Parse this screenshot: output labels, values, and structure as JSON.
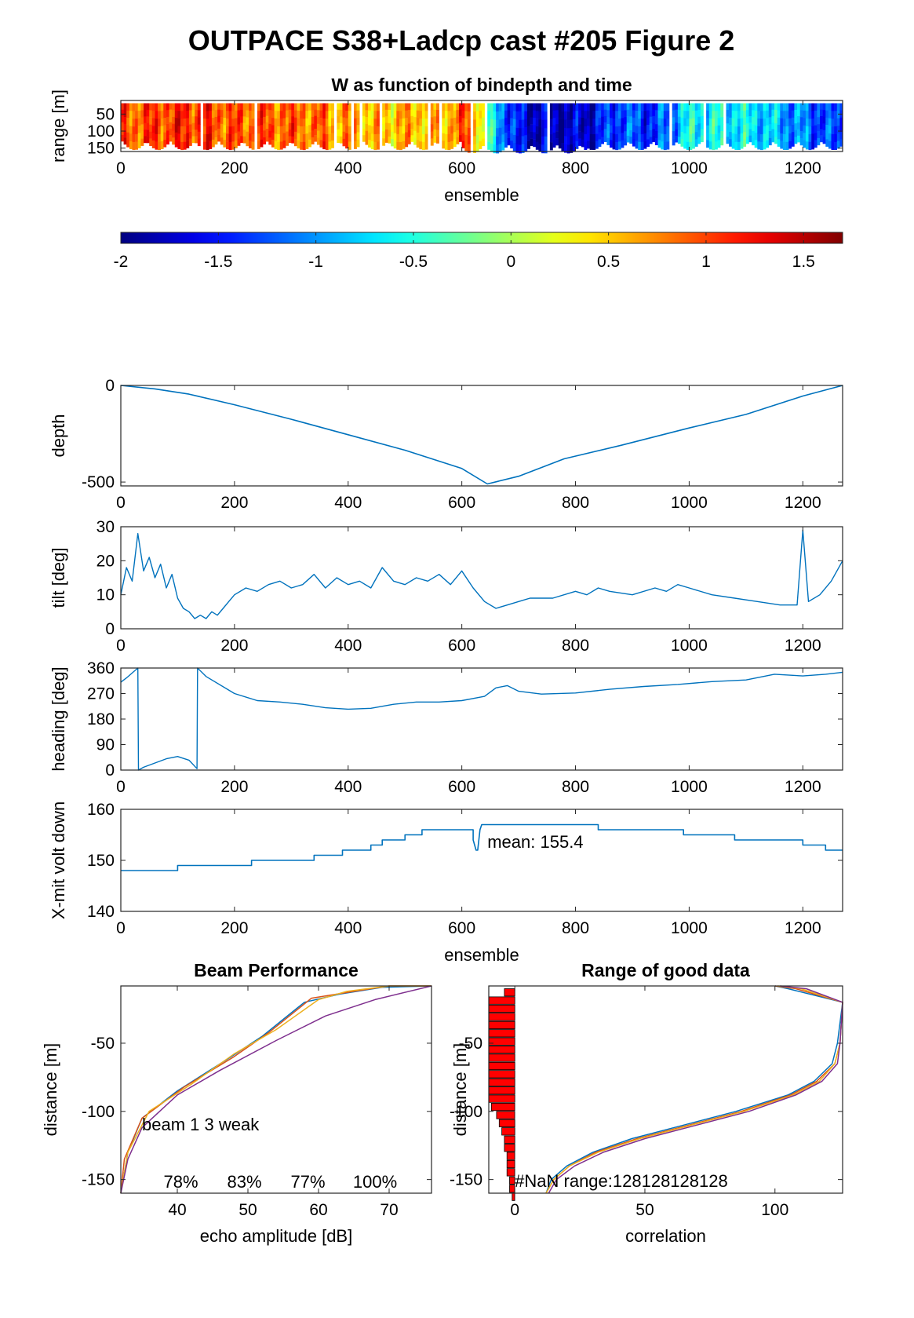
{
  "figure": {
    "title": "OUTPACE S38+Ladcp cast #205 Figure 2",
    "colors": {
      "line": "#0072BD",
      "bar_fill": "#ff0000",
      "axis": "#262626"
    }
  },
  "chart_data": [
    {
      "id": "w_image",
      "type": "heatmap",
      "title": "W as function of bindepth and time",
      "xlabel": "ensemble",
      "ylabel": "range [m]",
      "xlim": [
        0,
        1270
      ],
      "ylim": [
        10,
        160
      ],
      "y_reversed": true,
      "xticks": [
        0,
        200,
        400,
        600,
        800,
        1000,
        1200
      ],
      "yticks": [
        50,
        100,
        150
      ],
      "colormap": "jet",
      "clim": [
        -2,
        1.7
      ],
      "w_profile": {
        "ensemble": [
          0,
          60,
          120,
          200,
          280,
          360,
          440,
          520,
          580,
          620,
          650,
          700,
          760,
          820,
          880,
          940,
          1000,
          1060,
          1120,
          1180,
          1240,
          1270
        ],
        "w": [
          0.9,
          1.0,
          1.1,
          0.9,
          0.9,
          0.8,
          0.5,
          0.6,
          0.7,
          1.0,
          -0.6,
          -1.6,
          -1.8,
          -1.7,
          -1.2,
          -1.4,
          -0.6,
          -0.6,
          -0.7,
          -1.0,
          -1.3,
          -1.4
        ]
      }
    },
    {
      "id": "colorbar",
      "type": "colorbar",
      "colormap": "jet",
      "clim": [
        -2,
        1.7
      ],
      "ticks": [
        "-2",
        "-1.5",
        "-1",
        "-0.5",
        "0",
        "0.5",
        "1",
        "1.5"
      ]
    },
    {
      "id": "depth",
      "type": "line",
      "xlabel": "",
      "ylabel": "depth",
      "xlim": [
        0,
        1270
      ],
      "ylim": [
        -520,
        0
      ],
      "xticks": [
        0,
        200,
        400,
        600,
        800,
        1000,
        1200
      ],
      "yticks": [
        0,
        -500
      ],
      "x": [
        0,
        60,
        120,
        200,
        300,
        400,
        500,
        600,
        645,
        700,
        780,
        880,
        1000,
        1100,
        1200,
        1270
      ],
      "y": [
        0,
        -18,
        -45,
        -100,
        -175,
        -255,
        -335,
        -430,
        -510,
        -470,
        -380,
        -310,
        -220,
        -150,
        -55,
        0
      ]
    },
    {
      "id": "tilt",
      "type": "line",
      "xlabel": "",
      "ylabel": "tilt [deg]",
      "xlim": [
        0,
        1270
      ],
      "ylim": [
        0,
        30
      ],
      "xticks": [
        0,
        200,
        400,
        600,
        800,
        1000,
        1200
      ],
      "yticks": [
        0,
        10,
        20,
        30
      ],
      "x": [
        0,
        10,
        20,
        30,
        40,
        50,
        60,
        70,
        80,
        90,
        100,
        110,
        120,
        130,
        140,
        150,
        160,
        170,
        180,
        190,
        200,
        220,
        240,
        260,
        280,
        300,
        320,
        340,
        360,
        380,
        400,
        420,
        440,
        460,
        480,
        500,
        520,
        540,
        560,
        580,
        600,
        620,
        640,
        660,
        680,
        700,
        720,
        760,
        800,
        820,
        840,
        860,
        900,
        940,
        960,
        980,
        1000,
        1040,
        1080,
        1120,
        1160,
        1190,
        1200,
        1210,
        1230,
        1250,
        1270
      ],
      "y": [
        10,
        18,
        14,
        28,
        17,
        21,
        15,
        19,
        12,
        16,
        9,
        6,
        5,
        3,
        4,
        3,
        5,
        4,
        6,
        8,
        10,
        12,
        11,
        13,
        14,
        12,
        13,
        16,
        12,
        15,
        13,
        14,
        12,
        18,
        14,
        13,
        15,
        14,
        16,
        13,
        17,
        12,
        8,
        6,
        7,
        8,
        9,
        9,
        11,
        10,
        12,
        11,
        10,
        12,
        11,
        13,
        12,
        10,
        9,
        8,
        7,
        7,
        29,
        8,
        10,
        14,
        20
      ]
    },
    {
      "id": "heading",
      "type": "line",
      "xlabel": "",
      "ylabel": "heading [deg]",
      "xlim": [
        0,
        1270
      ],
      "ylim": [
        0,
        360
      ],
      "xticks": [
        0,
        200,
        400,
        600,
        800,
        1000,
        1200
      ],
      "yticks": [
        0,
        90,
        180,
        270,
        360
      ],
      "x": [
        0,
        10,
        30,
        31,
        40,
        60,
        80,
        100,
        120,
        134,
        135,
        150,
        200,
        240,
        280,
        320,
        360,
        400,
        440,
        480,
        520,
        560,
        600,
        640,
        660,
        680,
        700,
        740,
        800,
        860,
        920,
        980,
        1040,
        1100,
        1150,
        1200,
        1240,
        1270
      ],
      "y": [
        310,
        325,
        360,
        0,
        10,
        25,
        40,
        48,
        35,
        5,
        360,
        330,
        270,
        245,
        240,
        232,
        220,
        215,
        218,
        232,
        240,
        240,
        245,
        260,
        290,
        298,
        278,
        268,
        272,
        285,
        295,
        302,
        312,
        318,
        338,
        332,
        338,
        345
      ]
    },
    {
      "id": "xmit_volt",
      "type": "line",
      "xlabel": "ensemble",
      "ylabel": "X-mit volt down",
      "xlim": [
        0,
        1270
      ],
      "ylim": [
        140,
        160
      ],
      "xticks": [
        0,
        200,
        400,
        600,
        800,
        1000,
        1200
      ],
      "yticks": [
        140,
        150,
        160
      ],
      "annotation": "mean: 155.4",
      "x": [
        0,
        100,
        100,
        230,
        230,
        340,
        340,
        390,
        390,
        440,
        440,
        460,
        460,
        500,
        500,
        530,
        530,
        620,
        620,
        625,
        628,
        632,
        635,
        640,
        640,
        840,
        840,
        990,
        990,
        1080,
        1080,
        1200,
        1200,
        1240,
        1240,
        1270
      ],
      "y": [
        148,
        148,
        149,
        149,
        150,
        150,
        151,
        151,
        152,
        152,
        153,
        153,
        154,
        154,
        155,
        155,
        156,
        156,
        154,
        152,
        152,
        156,
        157,
        157,
        157,
        157,
        156,
        156,
        155,
        155,
        154,
        154,
        153,
        153,
        152,
        152
      ]
    },
    {
      "id": "beam_performance",
      "type": "line",
      "title": "Beam Performance",
      "xlabel": "echo amplitude [dB]",
      "ylabel": "distance [m]",
      "xlim": [
        32,
        76
      ],
      "ylim": [
        -160,
        -8
      ],
      "xticks": [
        40,
        50,
        60,
        70
      ],
      "yticks": [
        -50,
        -100,
        -150
      ],
      "annotation": "beam 1  3 weak",
      "beam_pct": [
        "78%",
        "83%",
        "77%",
        "100%"
      ],
      "series": [
        {
          "color": "#0072BD",
          "x": [
            32,
            33,
            35,
            40,
            47,
            52,
            58,
            63,
            69,
            76
          ],
          "y": [
            -160,
            -130,
            -105,
            -85,
            -62,
            -45,
            -20,
            -14,
            -9,
            -8
          ]
        },
        {
          "color": "#D95319",
          "x": [
            32,
            32.5,
            35,
            41,
            48,
            53,
            59,
            65,
            70,
            76
          ],
          "y": [
            -160,
            -135,
            -105,
            -82,
            -60,
            -42,
            -17,
            -12,
            -8,
            -8
          ]
        },
        {
          "color": "#EDB120",
          "x": [
            32,
            33,
            36,
            42,
            48,
            54,
            60,
            64,
            70,
            76
          ],
          "y": [
            -160,
            -130,
            -100,
            -80,
            -58,
            -40,
            -18,
            -12,
            -8,
            -8
          ]
        },
        {
          "color": "#7E2F8E",
          "x": [
            32,
            33,
            35,
            40,
            46,
            54,
            61,
            68,
            76
          ],
          "y": [
            -160,
            -135,
            -112,
            -88,
            -70,
            -48,
            -30,
            -18,
            -8
          ]
        }
      ]
    },
    {
      "id": "range_good_data",
      "type": "line",
      "title": "Range of good data",
      "xlabel": "correlation",
      "ylabel": "distance [m]",
      "xlim": [
        -10,
        126
      ],
      "ylim": [
        -160,
        -8
      ],
      "xticks": [
        0,
        50,
        100
      ],
      "yticks": [
        -50,
        -100,
        -150
      ],
      "annotation": "#NaN range:128128128128",
      "nan_bars": {
        "y": [
          -10,
          -16,
          -22,
          -28,
          -34,
          -40,
          -46,
          -52,
          -58,
          -64,
          -70,
          -76,
          -82,
          -88,
          -94,
          -100,
          -106,
          -112,
          -118,
          -124,
          -130,
          -136,
          -142,
          -148,
          -154,
          -160
        ],
        "width": [
          4,
          10,
          10,
          10,
          10,
          10,
          10,
          10,
          10,
          10,
          10,
          10,
          10,
          10,
          9,
          7,
          6,
          5,
          4,
          4,
          3,
          3,
          3,
          2,
          2,
          1
        ]
      },
      "series": [
        {
          "color": "#0072BD",
          "x": [
            12,
            14,
            20,
            30,
            45,
            65,
            85,
            105,
            115,
            122,
            124,
            126,
            105,
            100
          ],
          "y": [
            -160,
            -150,
            -140,
            -130,
            -120,
            -110,
            -100,
            -88,
            -78,
            -65,
            -50,
            -20,
            -10,
            -8
          ]
        },
        {
          "color": "#D95319",
          "x": [
            12,
            15,
            21,
            31,
            47,
            67,
            87,
            106,
            116,
            123,
            125,
            126,
            108,
            100
          ],
          "y": [
            -160,
            -150,
            -140,
            -130,
            -120,
            -110,
            -100,
            -88,
            -78,
            -65,
            -50,
            -20,
            -10,
            -8
          ]
        },
        {
          "color": "#EDB120",
          "x": [
            12,
            15,
            21,
            32,
            48,
            68,
            88,
            107,
            117,
            123,
            125,
            126,
            110,
            101
          ],
          "y": [
            -160,
            -150,
            -140,
            -130,
            -120,
            -110,
            -100,
            -88,
            -78,
            -65,
            -50,
            -20,
            -10,
            -8
          ]
        },
        {
          "color": "#7E2F8E",
          "x": [
            13,
            16,
            23,
            34,
            50,
            70,
            90,
            108,
            118,
            124,
            125,
            126,
            112,
            102
          ],
          "y": [
            -160,
            -150,
            -140,
            -130,
            -120,
            -110,
            -100,
            -88,
            -78,
            -65,
            -50,
            -20,
            -10,
            -8
          ]
        }
      ]
    }
  ]
}
